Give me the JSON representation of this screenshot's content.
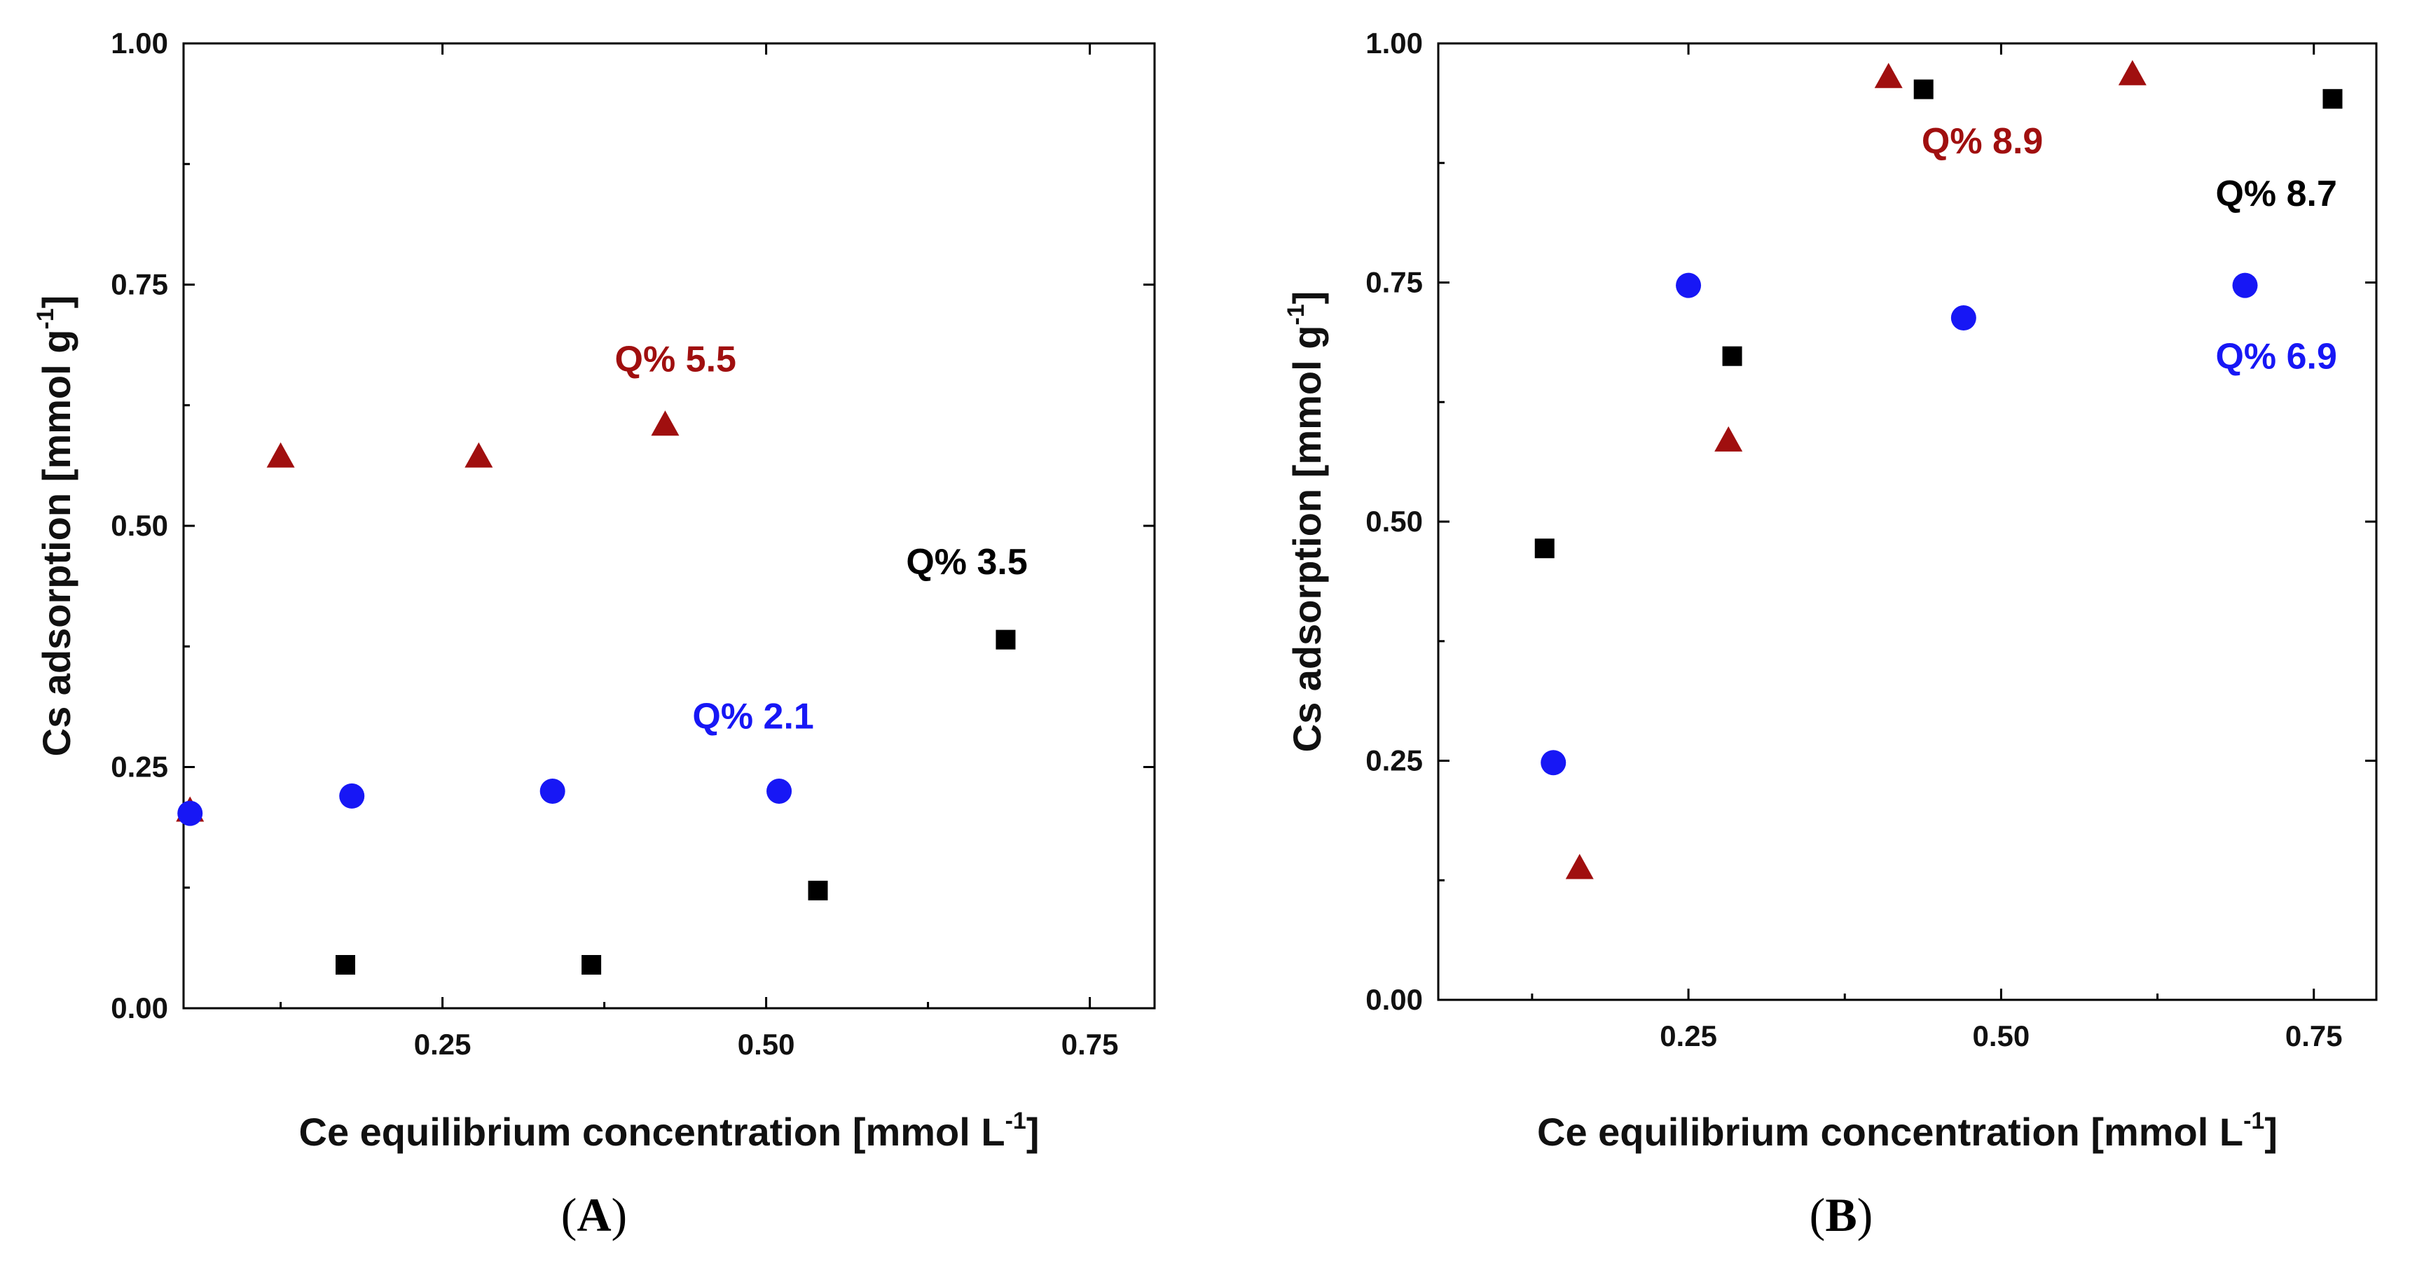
{
  "colors": {
    "black": "#000000",
    "red": "#a00f0f",
    "blue": "#1717f5"
  },
  "chart_data": [
    {
      "type": "scatter",
      "panel": "A",
      "panel_label": "A",
      "xlabel": "Ce equilibrium concentration [mmol L",
      "xlabel_sup": "-1",
      "xlabel_close": "]",
      "ylabel": "Cs adsorption [mmol g",
      "ylabel_sup": "-1",
      "ylabel_close": "]",
      "xlim": [
        0.05,
        0.8
      ],
      "ylim": [
        0,
        1
      ],
      "xticks": [
        0.25,
        0.5,
        0.75
      ],
      "xtick_labels": [
        "0.25",
        "0.50",
        "0.75"
      ],
      "yticks": [
        0,
        0.25,
        0.5,
        0.75,
        1.0
      ],
      "ytick_labels": [
        "0.00",
        "0.25",
        "0.50",
        "0.75",
        "1.00"
      ],
      "grid": false,
      "series": [
        {
          "name": "black",
          "marker": "square",
          "color": "#000000",
          "x": [
            0.175,
            0.365,
            0.54,
            0.685
          ],
          "y": [
            0.045,
            0.045,
            0.122,
            0.382
          ]
        },
        {
          "name": "red",
          "marker": "triangle",
          "color": "#a00f0f",
          "x": [
            0.055,
            0.125,
            0.278,
            0.422
          ],
          "y": [
            0.205,
            0.572,
            0.572,
            0.605
          ]
        },
        {
          "name": "blue",
          "marker": "circle",
          "color": "#1717f5",
          "x": [
            0.055,
            0.18,
            0.335,
            0.51
          ],
          "y": [
            0.202,
            0.22,
            0.225,
            0.225
          ]
        }
      ],
      "annotations": [
        {
          "text": "Q% 5.5",
          "color": "#a00f0f",
          "x": 0.43,
          "y": 0.66
        },
        {
          "text": "Q% 3.5",
          "color": "#000000",
          "x": 0.655,
          "y": 0.45
        },
        {
          "text": "Q% 2.1",
          "color": "#1717f5",
          "x": 0.49,
          "y": 0.29
        }
      ]
    },
    {
      "type": "scatter",
      "panel": "B",
      "panel_label": "B",
      "xlabel": "Ce equilibrium concentration [mmol L",
      "xlabel_sup": "-1",
      "xlabel_close": "]",
      "ylabel": "Cs adsorption [mmol g",
      "ylabel_sup": "-1",
      "ylabel_close": "]",
      "xlim": [
        0.05,
        0.8
      ],
      "ylim": [
        0,
        1
      ],
      "xticks": [
        0.25,
        0.5,
        0.75
      ],
      "xtick_labels": [
        "0.25",
        "0.50",
        "0.75"
      ],
      "yticks": [
        0,
        0.25,
        0.5,
        0.75,
        1.0
      ],
      "ytick_labels": [
        "0.00",
        "0.25",
        "0.50",
        "0.75",
        "1.00"
      ],
      "grid": false,
      "series": [
        {
          "name": "black",
          "marker": "square",
          "color": "#000000",
          "x": [
            0.135,
            0.285,
            0.438,
            0.765
          ],
          "y": [
            0.472,
            0.673,
            0.952,
            0.942
          ]
        },
        {
          "name": "red",
          "marker": "triangle",
          "color": "#a00f0f",
          "x": [
            0.163,
            0.282,
            0.41,
            0.605
          ],
          "y": [
            0.138,
            0.585,
            0.965,
            0.968
          ]
        },
        {
          "name": "blue",
          "marker": "circle",
          "color": "#1717f5",
          "x": [
            0.142,
            0.25,
            0.47,
            0.695
          ],
          "y": [
            0.248,
            0.747,
            0.713,
            0.747
          ]
        }
      ],
      "annotations": [
        {
          "text": "Q% 8.9",
          "color": "#a00f0f",
          "x": 0.485,
          "y": 0.885
        },
        {
          "text": "Q% 8.7",
          "color": "#000000",
          "x": 0.72,
          "y": 0.83
        },
        {
          "text": "Q% 6.9",
          "color": "#1717f5",
          "x": 0.72,
          "y": 0.66
        }
      ]
    }
  ]
}
